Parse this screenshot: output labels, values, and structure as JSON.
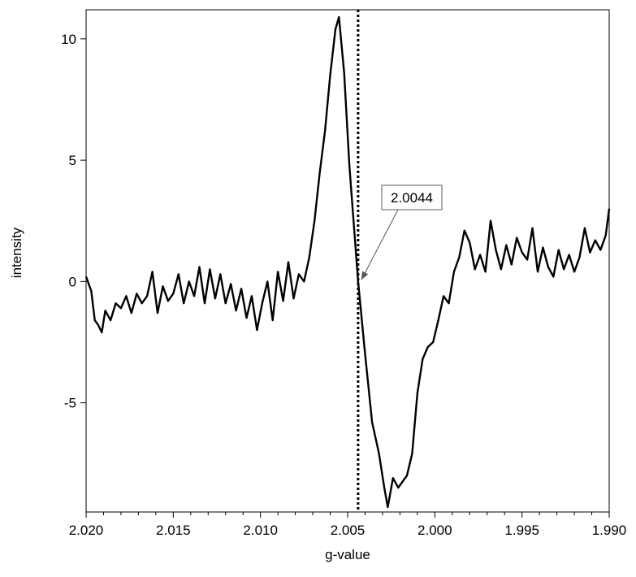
{
  "chart_data": {
    "type": "line",
    "title": "",
    "xlabel": "g-value",
    "ylabel": "intensity",
    "xlim": [
      2.02,
      1.99
    ],
    "ylim": [
      -9.5,
      11.2
    ],
    "x_reversed": true,
    "x_ticks": [
      "2.020",
      "2.015",
      "2.010",
      "2.005",
      "2.000",
      "1.995",
      "1.990"
    ],
    "y_ticks": [
      "-5",
      "0",
      "5",
      "10"
    ],
    "grid": false,
    "line_color": "#000000",
    "marker_line": {
      "x": 2.0044,
      "style": "dotted"
    },
    "annotation": {
      "text": "2.0044",
      "x": 2.0044,
      "y": 0.0
    },
    "series": [
      {
        "x": [
          2.02,
          2.0197,
          2.0195,
          2.0193,
          2.0191,
          2.0189,
          2.0186,
          2.0183,
          2.018,
          2.0177,
          2.0174,
          2.0171,
          2.0168,
          2.0165,
          2.0162,
          2.0159,
          2.0156,
          2.0153,
          2.015,
          2.0147,
          2.0144,
          2.0141,
          2.0138,
          2.0135,
          2.0132,
          2.0129,
          2.0126,
          2.0123,
          2.012,
          2.0117,
          2.0114,
          2.0111,
          2.0108,
          2.0105,
          2.0102,
          2.0099,
          2.0096,
          2.0093,
          2.009,
          2.0087,
          2.0084,
          2.0081,
          2.0078,
          2.0075,
          2.0072,
          2.0069,
          2.0066,
          2.0063,
          2.006,
          2.0057,
          2.0055,
          2.0052,
          2.0049,
          2.0046,
          2.0044,
          2.004,
          2.0036,
          2.0032,
          2.0029,
          2.0027,
          2.0024,
          2.0021,
          2.0019,
          2.0016,
          2.0013,
          2.001,
          2.0007,
          2.0004,
          2.0001,
          1.9998,
          1.9995,
          1.9992,
          1.9989,
          1.9986,
          1.9983,
          1.998,
          1.9977,
          1.9974,
          1.9971,
          1.9968,
          1.9965,
          1.9962,
          1.9959,
          1.9956,
          1.9953,
          1.995,
          1.9947,
          1.9944,
          1.9941,
          1.9938,
          1.9935,
          1.9932,
          1.9929,
          1.9926,
          1.9923,
          1.992,
          1.9917,
          1.9914,
          1.9911,
          1.9908,
          1.9905,
          1.9902,
          1.99
        ],
        "y": [
          0.2,
          -0.4,
          -1.6,
          -1.8,
          -2.1,
          -1.2,
          -1.6,
          -0.9,
          -1.1,
          -0.6,
          -1.3,
          -0.5,
          -0.9,
          -0.6,
          0.4,
          -1.3,
          -0.2,
          -0.8,
          -0.5,
          0.3,
          -0.9,
          0.0,
          -0.6,
          0.6,
          -0.9,
          0.5,
          -0.7,
          0.3,
          -0.9,
          -0.1,
          -1.2,
          -0.3,
          -1.5,
          -0.6,
          -2.0,
          -0.9,
          0.0,
          -1.6,
          0.4,
          -0.8,
          0.8,
          -0.7,
          0.3,
          0.0,
          1.0,
          2.5,
          4.5,
          6.2,
          8.5,
          10.4,
          10.9,
          8.6,
          4.8,
          1.9,
          0.0,
          -3.0,
          -5.8,
          -7.1,
          -8.5,
          -9.3,
          -8.1,
          -8.5,
          -8.3,
          -8.0,
          -7.1,
          -4.6,
          -3.2,
          -2.7,
          -2.5,
          -1.6,
          -0.6,
          -0.9,
          0.4,
          1.0,
          2.1,
          1.6,
          0.5,
          1.1,
          0.4,
          2.5,
          1.3,
          0.5,
          1.5,
          0.7,
          1.8,
          1.2,
          0.9,
          2.2,
          0.4,
          1.4,
          0.6,
          0.2,
          1.3,
          0.5,
          1.1,
          0.4,
          1.0,
          2.2,
          1.2,
          1.7,
          1.3,
          1.9,
          3.0
        ]
      }
    ]
  }
}
